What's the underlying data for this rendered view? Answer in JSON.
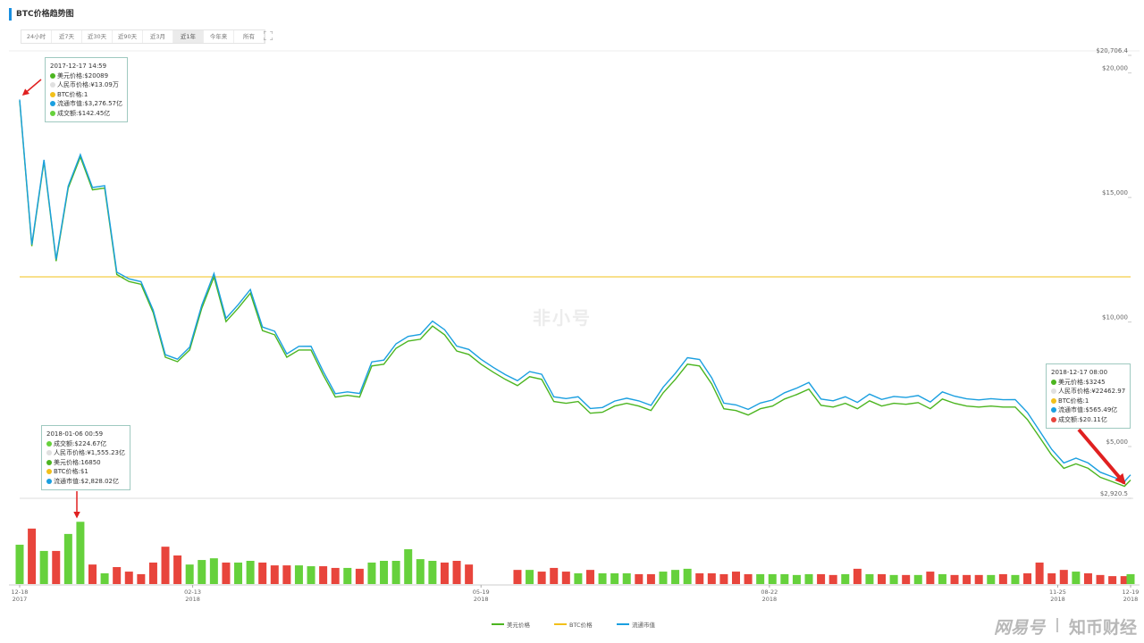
{
  "header": {
    "title": "BTC价格趋势图",
    "tabs": [
      "24小时",
      "近7天",
      "近30天",
      "近90天",
      "近3月",
      "近1年",
      "今年来",
      "所有"
    ],
    "active_tab": 5
  },
  "chart_data": [
    {
      "type": "line",
      "legend": "bottom",
      "x": [
        "2017-12-18",
        "2017-12-22",
        "2017-12-26",
        "2017-12-30",
        "2018-01-03",
        "2018-01-07",
        "2018-01-11",
        "2018-01-15",
        "2018-01-19",
        "2018-01-23",
        "2018-01-27",
        "2018-01-31",
        "2018-02-04",
        "2018-02-08",
        "2018-02-12",
        "2018-02-16",
        "2018-02-20",
        "2018-02-24",
        "2018-02-28",
        "2018-03-04",
        "2018-03-08",
        "2018-03-12",
        "2018-03-16",
        "2018-03-20",
        "2018-03-24",
        "2018-03-28",
        "2018-04-01",
        "2018-04-05",
        "2018-04-09",
        "2018-04-13",
        "2018-04-17",
        "2018-04-21",
        "2018-04-25",
        "2018-04-29",
        "2018-05-03",
        "2018-05-07",
        "2018-05-11",
        "2018-05-15",
        "2018-05-19",
        "2018-05-23",
        "2018-05-27",
        "2018-05-31",
        "2018-06-04",
        "2018-06-08",
        "2018-06-12",
        "2018-06-16",
        "2018-06-20",
        "2018-06-24",
        "2018-06-28",
        "2018-07-02",
        "2018-07-06",
        "2018-07-10",
        "2018-07-14",
        "2018-07-18",
        "2018-07-22",
        "2018-07-26",
        "2018-07-30",
        "2018-08-03",
        "2018-08-07",
        "2018-08-11",
        "2018-08-15",
        "2018-08-19",
        "2018-08-23",
        "2018-08-27",
        "2018-08-31",
        "2018-09-04",
        "2018-09-08",
        "2018-09-12",
        "2018-09-16",
        "2018-09-20",
        "2018-09-24",
        "2018-09-28",
        "2018-10-02",
        "2018-10-06",
        "2018-10-10",
        "2018-10-14",
        "2018-10-18",
        "2018-10-22",
        "2018-10-26",
        "2018-10-30",
        "2018-11-03",
        "2018-11-07",
        "2018-11-11",
        "2018-11-15",
        "2018-11-19",
        "2018-11-23",
        "2018-11-27",
        "2018-12-01",
        "2018-12-05",
        "2018-12-09",
        "2018-12-13",
        "2018-12-17",
        "2018-12-19"
      ],
      "xlim": [
        "2017-12-18",
        "2018-12-19"
      ],
      "ylim": [
        2920.5,
        20706.4
      ],
      "yticks": [
        {
          "value": 20706.4,
          "label": "$20,706.4"
        },
        {
          "value": 20000,
          "label": "$20,000"
        },
        {
          "value": 15000,
          "label": "$15,000"
        },
        {
          "value": 10000,
          "label": "$10,000"
        },
        {
          "value": 5000,
          "label": "$5,000"
        },
        {
          "value": 2920.5,
          "label": "$2,920.5"
        }
      ],
      "y2lim": [
        0,
        2
      ],
      "y3lim": [
        489,
        3468
      ],
      "grid": false,
      "series": [
        {
          "name": "美元价格",
          "color": "#4cb520",
          "values": [
            18930,
            13100,
            16500,
            12500,
            15430,
            16680,
            15360,
            15430,
            11960,
            11680,
            11570,
            10430,
            8640,
            8460,
            8930,
            10610,
            11860,
            10070,
            10610,
            11210,
            9710,
            9540,
            8640,
            8930,
            8930,
            7930,
            7040,
            7110,
            7040,
            8290,
            8360,
            9000,
            9290,
            9360,
            9890,
            9540,
            8890,
            8750,
            8360,
            8040,
            7750,
            7500,
            7860,
            7750,
            6860,
            6790,
            6860,
            6390,
            6430,
            6680,
            6790,
            6680,
            6500,
            7210,
            7750,
            8360,
            8290,
            7570,
            6570,
            6500,
            6320,
            6570,
            6680,
            6960,
            7140,
            7360,
            6710,
            6640,
            6790,
            6570,
            6890,
            6680,
            6790,
            6750,
            6820,
            6570,
            6960,
            6790,
            6680,
            6640,
            6680,
            6640,
            6640,
            6140,
            5430,
            4710,
            4180,
            4360,
            4180,
            3820,
            3640,
            3460,
            3710
          ]
        },
        {
          "name": "BTC价格",
          "color": "#f2c01a",
          "axis": "y2",
          "values": [
            1,
            1,
            1,
            1,
            1,
            1,
            1,
            1,
            1,
            1,
            1,
            1,
            1,
            1,
            1,
            1,
            1,
            1,
            1,
            1,
            1,
            1,
            1,
            1,
            1,
            1,
            1,
            1,
            1,
            1,
            1,
            1,
            1,
            1,
            1,
            1,
            1,
            1,
            1,
            1,
            1,
            1,
            1,
            1,
            1,
            1,
            1,
            1,
            1,
            1,
            1,
            1,
            1,
            1,
            1,
            1,
            1,
            1,
            1,
            1,
            1,
            1,
            1,
            1,
            1,
            1,
            1,
            1,
            1,
            1,
            1,
            1,
            1,
            1,
            1,
            1,
            1,
            1,
            1,
            1,
            1,
            1,
            1,
            1,
            1,
            1,
            1,
            1,
            1,
            1,
            1,
            1,
            1
          ]
        },
        {
          "name": "流通市值",
          "color": "#1a9fe0",
          "axis": "y3",
          "values": [
            3171,
            2196,
            2765,
            2096,
            2589,
            2801,
            2579,
            2592,
            2010,
            1965,
            1946,
            1755,
            1455,
            1425,
            1505,
            1789,
            2001,
            1700,
            1791,
            1893,
            1641,
            1613,
            1461,
            1511,
            1512,
            1343,
            1193,
            1205,
            1194,
            1407,
            1419,
            1528,
            1578,
            1591,
            1681,
            1623,
            1513,
            1490,
            1424,
            1370,
            1321,
            1280,
            1341,
            1323,
            1172,
            1160,
            1172,
            1093,
            1100,
            1143,
            1162,
            1144,
            1114,
            1236,
            1329,
            1435,
            1423,
            1300,
            1129,
            1117,
            1087,
            1130,
            1150,
            1199,
            1230,
            1268,
            1157,
            1145,
            1172,
            1134,
            1190,
            1154,
            1174,
            1167,
            1180,
            1137,
            1205,
            1176,
            1158,
            1151,
            1159,
            1152,
            1153,
            1067,
            943,
            819,
            727,
            759,
            727,
            665,
            634,
            603,
            647
          ]
        }
      ]
    },
    {
      "type": "bar",
      "up_color": "#66d13c",
      "down_color": "#e8453c",
      "x": [
        "2017-12-18",
        "2017-12-22",
        "2017-12-26",
        "2017-12-30",
        "2018-01-03",
        "2018-01-07",
        "2018-01-11",
        "2018-01-15",
        "2018-01-19",
        "2018-01-23",
        "2018-01-27",
        "2018-01-31",
        "2018-02-04",
        "2018-02-08",
        "2018-02-12",
        "2018-02-16",
        "2018-02-20",
        "2018-02-24",
        "2018-02-28",
        "2018-03-04",
        "2018-03-08",
        "2018-03-12",
        "2018-03-16",
        "2018-03-20",
        "2018-03-24",
        "2018-03-28",
        "2018-04-01",
        "2018-04-05",
        "2018-04-09",
        "2018-04-13",
        "2018-04-17",
        "2018-04-21",
        "2018-04-25",
        "2018-04-29",
        "2018-05-03",
        "2018-05-07",
        "2018-05-11",
        "2018-05-15",
        "2018-05-19",
        "2018-05-23",
        "2018-05-27",
        "2018-05-31",
        "2018-06-04",
        "2018-06-08",
        "2018-06-12",
        "2018-06-16",
        "2018-06-20",
        "2018-06-24",
        "2018-06-28",
        "2018-07-02",
        "2018-07-06",
        "2018-07-10",
        "2018-07-14",
        "2018-07-18",
        "2018-07-22",
        "2018-07-26",
        "2018-07-30",
        "2018-08-03",
        "2018-08-07",
        "2018-08-11",
        "2018-08-15",
        "2018-08-19",
        "2018-08-23",
        "2018-08-27",
        "2018-08-31",
        "2018-09-04",
        "2018-09-08",
        "2018-09-12",
        "2018-09-16",
        "2018-09-20",
        "2018-09-24",
        "2018-09-28",
        "2018-10-02",
        "2018-10-06",
        "2018-10-10",
        "2018-10-14",
        "2018-10-18",
        "2018-10-22",
        "2018-10-26",
        "2018-10-30",
        "2018-11-03",
        "2018-11-07",
        "2018-11-11",
        "2018-11-15",
        "2018-11-19",
        "2018-11-23",
        "2018-11-27",
        "2018-12-01",
        "2018-12-05",
        "2018-12-09",
        "2018-12-13",
        "2018-12-17",
        "2018-12-19"
      ],
      "xlim": [
        "2017-12-18",
        "2018-12-19"
      ],
      "xticks": [
        {
          "value": "2017-12-18",
          "label": "12-18\n2017"
        },
        {
          "value": "2018-02-13",
          "label": "02-13\n2018"
        },
        {
          "value": "2018-05-19",
          "label": "05-19\n2018"
        },
        {
          "value": "2018-08-22",
          "label": "08-22\n2018"
        },
        {
          "value": "2018-11-25",
          "label": "11-25\n2018"
        },
        {
          "value": "2018-12-19",
          "label": "12-19\n2018"
        }
      ],
      "ylim": [
        0,
        265
      ],
      "values": [
        139,
        196,
        117,
        117,
        177,
        220,
        69,
        38,
        60,
        44,
        35,
        76,
        132,
        101,
        69,
        85,
        91,
        76,
        76,
        82,
        76,
        66,
        66,
        66,
        63,
        63,
        57,
        57,
        54,
        76,
        82,
        82,
        123,
        88,
        82,
        76,
        82,
        69,
        null,
        null,
        null,
        50,
        50,
        44,
        57,
        44,
        38,
        50,
        38,
        38,
        38,
        35,
        35,
        44,
        50,
        54,
        38,
        38,
        35,
        44,
        35,
        35,
        35,
        35,
        32,
        35,
        35,
        32,
        35,
        54,
        35,
        35,
        32,
        32,
        32,
        44,
        35,
        32,
        32,
        32,
        32,
        35,
        32,
        38,
        76,
        38,
        50,
        44,
        38,
        32,
        28,
        28,
        35
      ]
    }
  ],
  "tooltips": [
    {
      "title": "2017-12-17 14:59",
      "lines": [
        {
          "text": "美元价格:$20089",
          "color": "#4cb520"
        },
        {
          "text": "人民币价格:¥13.09万",
          "color": "#e0e0e0"
        },
        {
          "text": "BTC价格:1",
          "color": "#f2c01a"
        },
        {
          "text": "流通市值:$3,276.57亿",
          "color": "#1a9fe0"
        },
        {
          "text": "成交额:$142.45亿",
          "color": "#66d13c"
        }
      ]
    },
    {
      "title": "2018-01-06 00:59",
      "lines": [
        {
          "text": "成交额:$224.67亿",
          "color": "#66d13c"
        },
        {
          "text": "人民币价格:¥1,555.23亿",
          "color": "#e0e0e0"
        },
        {
          "text": "美元价格:16850",
          "color": "#4cb520"
        },
        {
          "text": "BTC价格:$1",
          "color": "#f2c01a"
        },
        {
          "text": "流通市值:$2,828.02亿",
          "color": "#1a9fe0"
        }
      ]
    },
    {
      "title": "2018-12-17 08:00",
      "lines": [
        {
          "text": "美元价格:$3245",
          "color": "#4cb520"
        },
        {
          "text": "人民币价格:¥22462.97",
          "color": "#e0e0e0"
        },
        {
          "text": "BTC价格:1",
          "color": "#f2c01a"
        },
        {
          "text": "流通市值:$565.49亿",
          "color": "#1a9fe0"
        },
        {
          "text": "成交额:$20.11亿",
          "color": "#e8453c"
        }
      ]
    }
  ],
  "watermark": {
    "center": "非小号",
    "left": "网易号",
    "right": "知币财经"
  }
}
